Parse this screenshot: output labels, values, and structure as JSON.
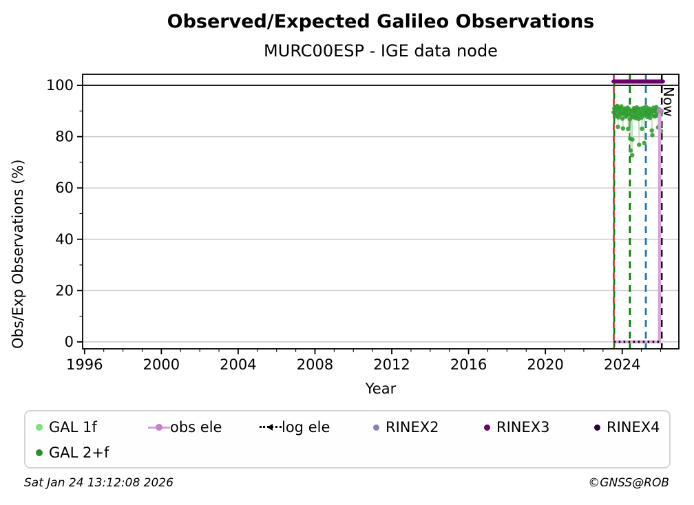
{
  "page": {
    "title": "Observed/Expected Galileo Observations",
    "subtitle": "MURC00ESP - IGE data node",
    "footer_left": "Sat Jan 24 13:12:08 2026",
    "footer_right": "©GNSS@ROB",
    "now_label": "Now"
  },
  "chart_data": {
    "type": "scatter",
    "title": "Observed/Expected Galileo Observations",
    "subtitle": "MURC00ESP - IGE data node",
    "xlabel": "Year",
    "ylabel": "Obs/Exp Observations (%)",
    "xlim": [
      1995.9,
      2026.95
    ],
    "ylim": [
      -2.7,
      104.3
    ],
    "x_major_ticks": [
      1996,
      2000,
      2004,
      2008,
      2012,
      2016,
      2020,
      2024
    ],
    "x_minor_step": 1,
    "y_major_ticks": [
      0,
      20,
      40,
      60,
      80,
      100
    ],
    "y_minor_step": 10,
    "grid": "horizontal",
    "grid_color": "#c9c9c9",
    "hundred_line_color": "#000000",
    "legend_position": "below",
    "series": [
      {
        "name": "GAL 1f",
        "type": "scatter",
        "color": "#7be07b",
        "points": []
      },
      {
        "name": "GAL 2+f",
        "type": "scatter",
        "color": "#2f9d2f",
        "line_color": "#b5d9b5",
        "points": [
          [
            2023.56,
            89.5
          ],
          [
            2023.59,
            91.0
          ],
          [
            2023.62,
            90.2
          ],
          [
            2023.65,
            88.0
          ],
          [
            2023.68,
            91.5
          ],
          [
            2023.71,
            89.0
          ],
          [
            2023.74,
            92.0
          ],
          [
            2023.77,
            90.5
          ],
          [
            2023.78,
            83.8
          ],
          [
            2023.8,
            87.5
          ],
          [
            2023.83,
            91.2
          ],
          [
            2023.86,
            89.8
          ],
          [
            2023.89,
            88.5
          ],
          [
            2023.92,
            90.8
          ],
          [
            2023.95,
            91.8
          ],
          [
            2023.98,
            89.2
          ],
          [
            2024.01,
            87.0
          ],
          [
            2024.04,
            83.2
          ],
          [
            2024.07,
            88.8
          ],
          [
            2024.1,
            90.3
          ],
          [
            2024.13,
            91.0
          ],
          [
            2024.16,
            89.5
          ],
          [
            2024.19,
            87.8
          ],
          [
            2024.22,
            90.0
          ],
          [
            2024.25,
            88.2
          ],
          [
            2024.28,
            91.3
          ],
          [
            2024.31,
            83.0
          ],
          [
            2024.34,
            89.0
          ],
          [
            2024.37,
            90.6
          ],
          [
            2024.4,
            86.8
          ],
          [
            2024.42,
            79.2
          ],
          [
            2024.44,
            74.6
          ],
          [
            2024.46,
            88.4
          ],
          [
            2024.49,
            90.1
          ],
          [
            2024.52,
            72.8
          ],
          [
            2024.53,
            78.9
          ],
          [
            2024.55,
            87.6
          ],
          [
            2024.58,
            89.9
          ],
          [
            2024.61,
            91.1
          ],
          [
            2024.64,
            88.7
          ],
          [
            2024.67,
            90.4
          ],
          [
            2024.7,
            87.2
          ],
          [
            2024.73,
            89.6
          ],
          [
            2024.76,
            91.4
          ],
          [
            2024.79,
            88.1
          ],
          [
            2024.82,
            90.7
          ],
          [
            2024.85,
            86.9
          ],
          [
            2024.88,
            76.8
          ],
          [
            2024.91,
            89.3
          ],
          [
            2024.94,
            90.9
          ],
          [
            2024.97,
            88.6
          ],
          [
            2025.0,
            87.4
          ],
          [
            2025.03,
            83.1
          ],
          [
            2025.06,
            89.7
          ],
          [
            2025.09,
            91.2
          ],
          [
            2025.12,
            88.3
          ],
          [
            2025.15,
            77.5
          ],
          [
            2025.18,
            90.0
          ],
          [
            2025.21,
            88.9
          ],
          [
            2025.24,
            91.6
          ],
          [
            2025.27,
            89.4
          ],
          [
            2025.3,
            87.7
          ],
          [
            2025.33,
            90.2
          ],
          [
            2025.36,
            88.5
          ],
          [
            2025.39,
            91.0
          ],
          [
            2025.42,
            89.1
          ],
          [
            2025.45,
            87.3
          ],
          [
            2025.48,
            90.5
          ],
          [
            2025.51,
            88.8
          ],
          [
            2025.54,
            82.4
          ],
          [
            2025.57,
            80.6
          ],
          [
            2025.6,
            89.9
          ],
          [
            2025.63,
            91.3
          ],
          [
            2025.66,
            88.0
          ],
          [
            2025.69,
            90.1
          ],
          [
            2025.72,
            87.9
          ],
          [
            2025.75,
            89.8
          ],
          [
            2025.78,
            91.5
          ],
          [
            2025.81,
            88.4
          ],
          [
            2025.84,
            90.3
          ],
          [
            2025.87,
            83.6
          ],
          [
            2025.9,
            89.0
          ],
          [
            2025.93,
            90.6
          ],
          [
            2025.96,
            84.0
          ],
          [
            2025.99,
            88.6
          ],
          [
            2026.02,
            82.2
          ],
          [
            2026.04,
            90.0
          ]
        ]
      },
      {
        "name": "obs ele",
        "type": "line",
        "color": "#d9a3d9",
        "marker_color": "#c77fc7",
        "points": [
          [
            2023.57,
            0
          ],
          [
            2025.94,
            0
          ],
          [
            2025.95,
            90.1
          ]
        ]
      },
      {
        "name": "log ele",
        "type": "dotted_line",
        "color": "#000000",
        "points": [
          [
            2023.57,
            0
          ],
          [
            2026.02,
            0
          ]
        ]
      },
      {
        "name": "RINEX2",
        "type": "availability_bar",
        "color": "#8b7db8",
        "points": []
      },
      {
        "name": "RINEX3",
        "type": "availability_bar",
        "color": "#6a006a",
        "y": 101.5,
        "points": [
          [
            2023.55,
            101.5
          ],
          [
            2026.12,
            101.5
          ]
        ]
      },
      {
        "name": "RINEX4",
        "type": "availability_bar",
        "color": "#2a0134",
        "points": []
      }
    ],
    "vlines": [
      {
        "x": 2023.56,
        "color": "#d62728",
        "dash": "9 9",
        "phase": 0,
        "width": 2.6
      },
      {
        "x": 2023.585,
        "color": "#008000",
        "dash": "9 9",
        "phase": 9,
        "width": 2.6
      },
      {
        "x": 2024.4,
        "color": "#008000",
        "dash": "10 7",
        "phase": 0,
        "width": 2.8
      },
      {
        "x": 2025.23,
        "color": "#1f77b4",
        "dash": "10 7",
        "phase": 0,
        "width": 2.8
      },
      {
        "x": 2026.06,
        "color": "#000000",
        "dash": "10 7",
        "phase": 0,
        "width": 2.5,
        "label": "Now"
      }
    ]
  },
  "legend": {
    "items": [
      {
        "label": "GAL 1f",
        "color": "#7be07b",
        "marker": "dot"
      },
      {
        "label": "GAL 2+f",
        "color": "#2e8b2e",
        "marker": "dot"
      },
      {
        "label": "obs ele",
        "color": "#d9a3d9",
        "marker_color": "#c77fc7",
        "marker": "line-dot"
      },
      {
        "label": "log ele",
        "color": "#000000",
        "marker": "dotted-arrow"
      },
      {
        "label": "RINEX2",
        "color": "#8b7db8",
        "marker": "dot"
      },
      {
        "label": "RINEX3",
        "color": "#6a006a",
        "marker": "dot"
      },
      {
        "label": "RINEX4",
        "color": "#2a0134",
        "marker": "dot"
      }
    ]
  }
}
